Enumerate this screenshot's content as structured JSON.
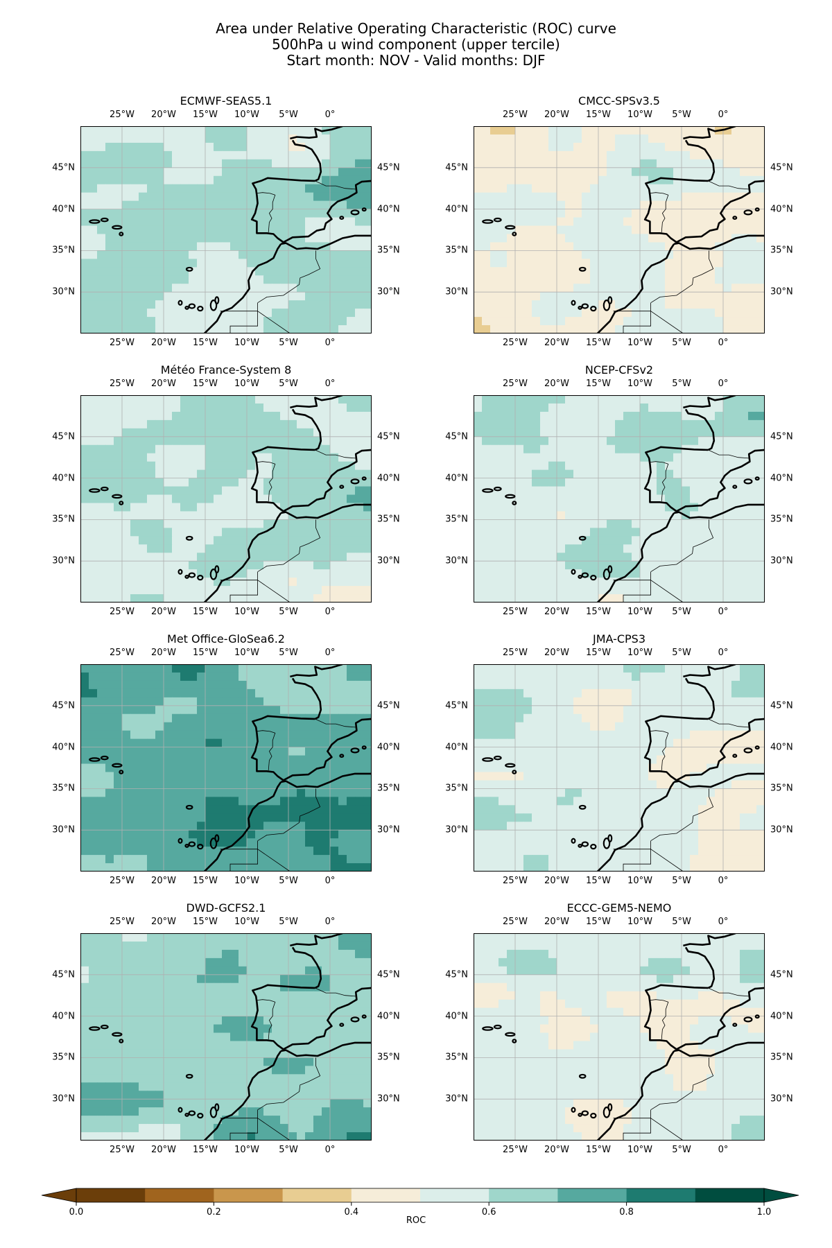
{
  "figure": {
    "title_lines": [
      "Area under Relative Operating Characteristic (ROC) curve",
      "500hPa u wind component (upper tercile)",
      "Start month: NOV - Valid months: DJF"
    ]
  },
  "axes": {
    "lon_ticks": [
      "25°W",
      "20°W",
      "15°W",
      "10°W",
      "5°W",
      "0°"
    ],
    "lat_ticks": [
      "45°N",
      "40°N",
      "35°N",
      "30°N"
    ]
  },
  "panels": [
    {
      "title": "ECMWF-SEAS5.1",
      "tendency": 0.62
    },
    {
      "title": "CMCC-SPSv3.5",
      "tendency": 0.5
    },
    {
      "title": "Météo France-System 8",
      "tendency": 0.6
    },
    {
      "title": "NCEP-CFSv2",
      "tendency": 0.58
    },
    {
      "title": "Met Office-GloSea6.2",
      "tendency": 0.76
    },
    {
      "title": "JMA-CPS3",
      "tendency": 0.55
    },
    {
      "title": "DWD-GCFS2.1",
      "tendency": 0.66
    },
    {
      "title": "ECCC-GEM5-NEMO",
      "tendency": 0.53
    }
  ],
  "colorbar": {
    "label": "ROC",
    "tick_labels": [
      "0.0",
      "0.2",
      "0.4",
      "0.6",
      "0.8",
      "1.0"
    ],
    "levels": [
      0,
      0.1,
      0.2,
      0.3,
      0.4,
      0.5,
      0.6,
      0.7,
      0.8,
      0.9,
      1.0
    ],
    "colors": [
      "#6b3e0a",
      "#a0641e",
      "#c9964c",
      "#e8cd92",
      "#f6edd9",
      "#dceeea",
      "#9fd6cb",
      "#56a99f",
      "#1e7b70",
      "#004d3f"
    ],
    "extend": "both"
  },
  "map": {
    "extent": {
      "lon_min": -30,
      "lon_max": 5,
      "lat_min": 25,
      "lat_max": 50
    }
  }
}
